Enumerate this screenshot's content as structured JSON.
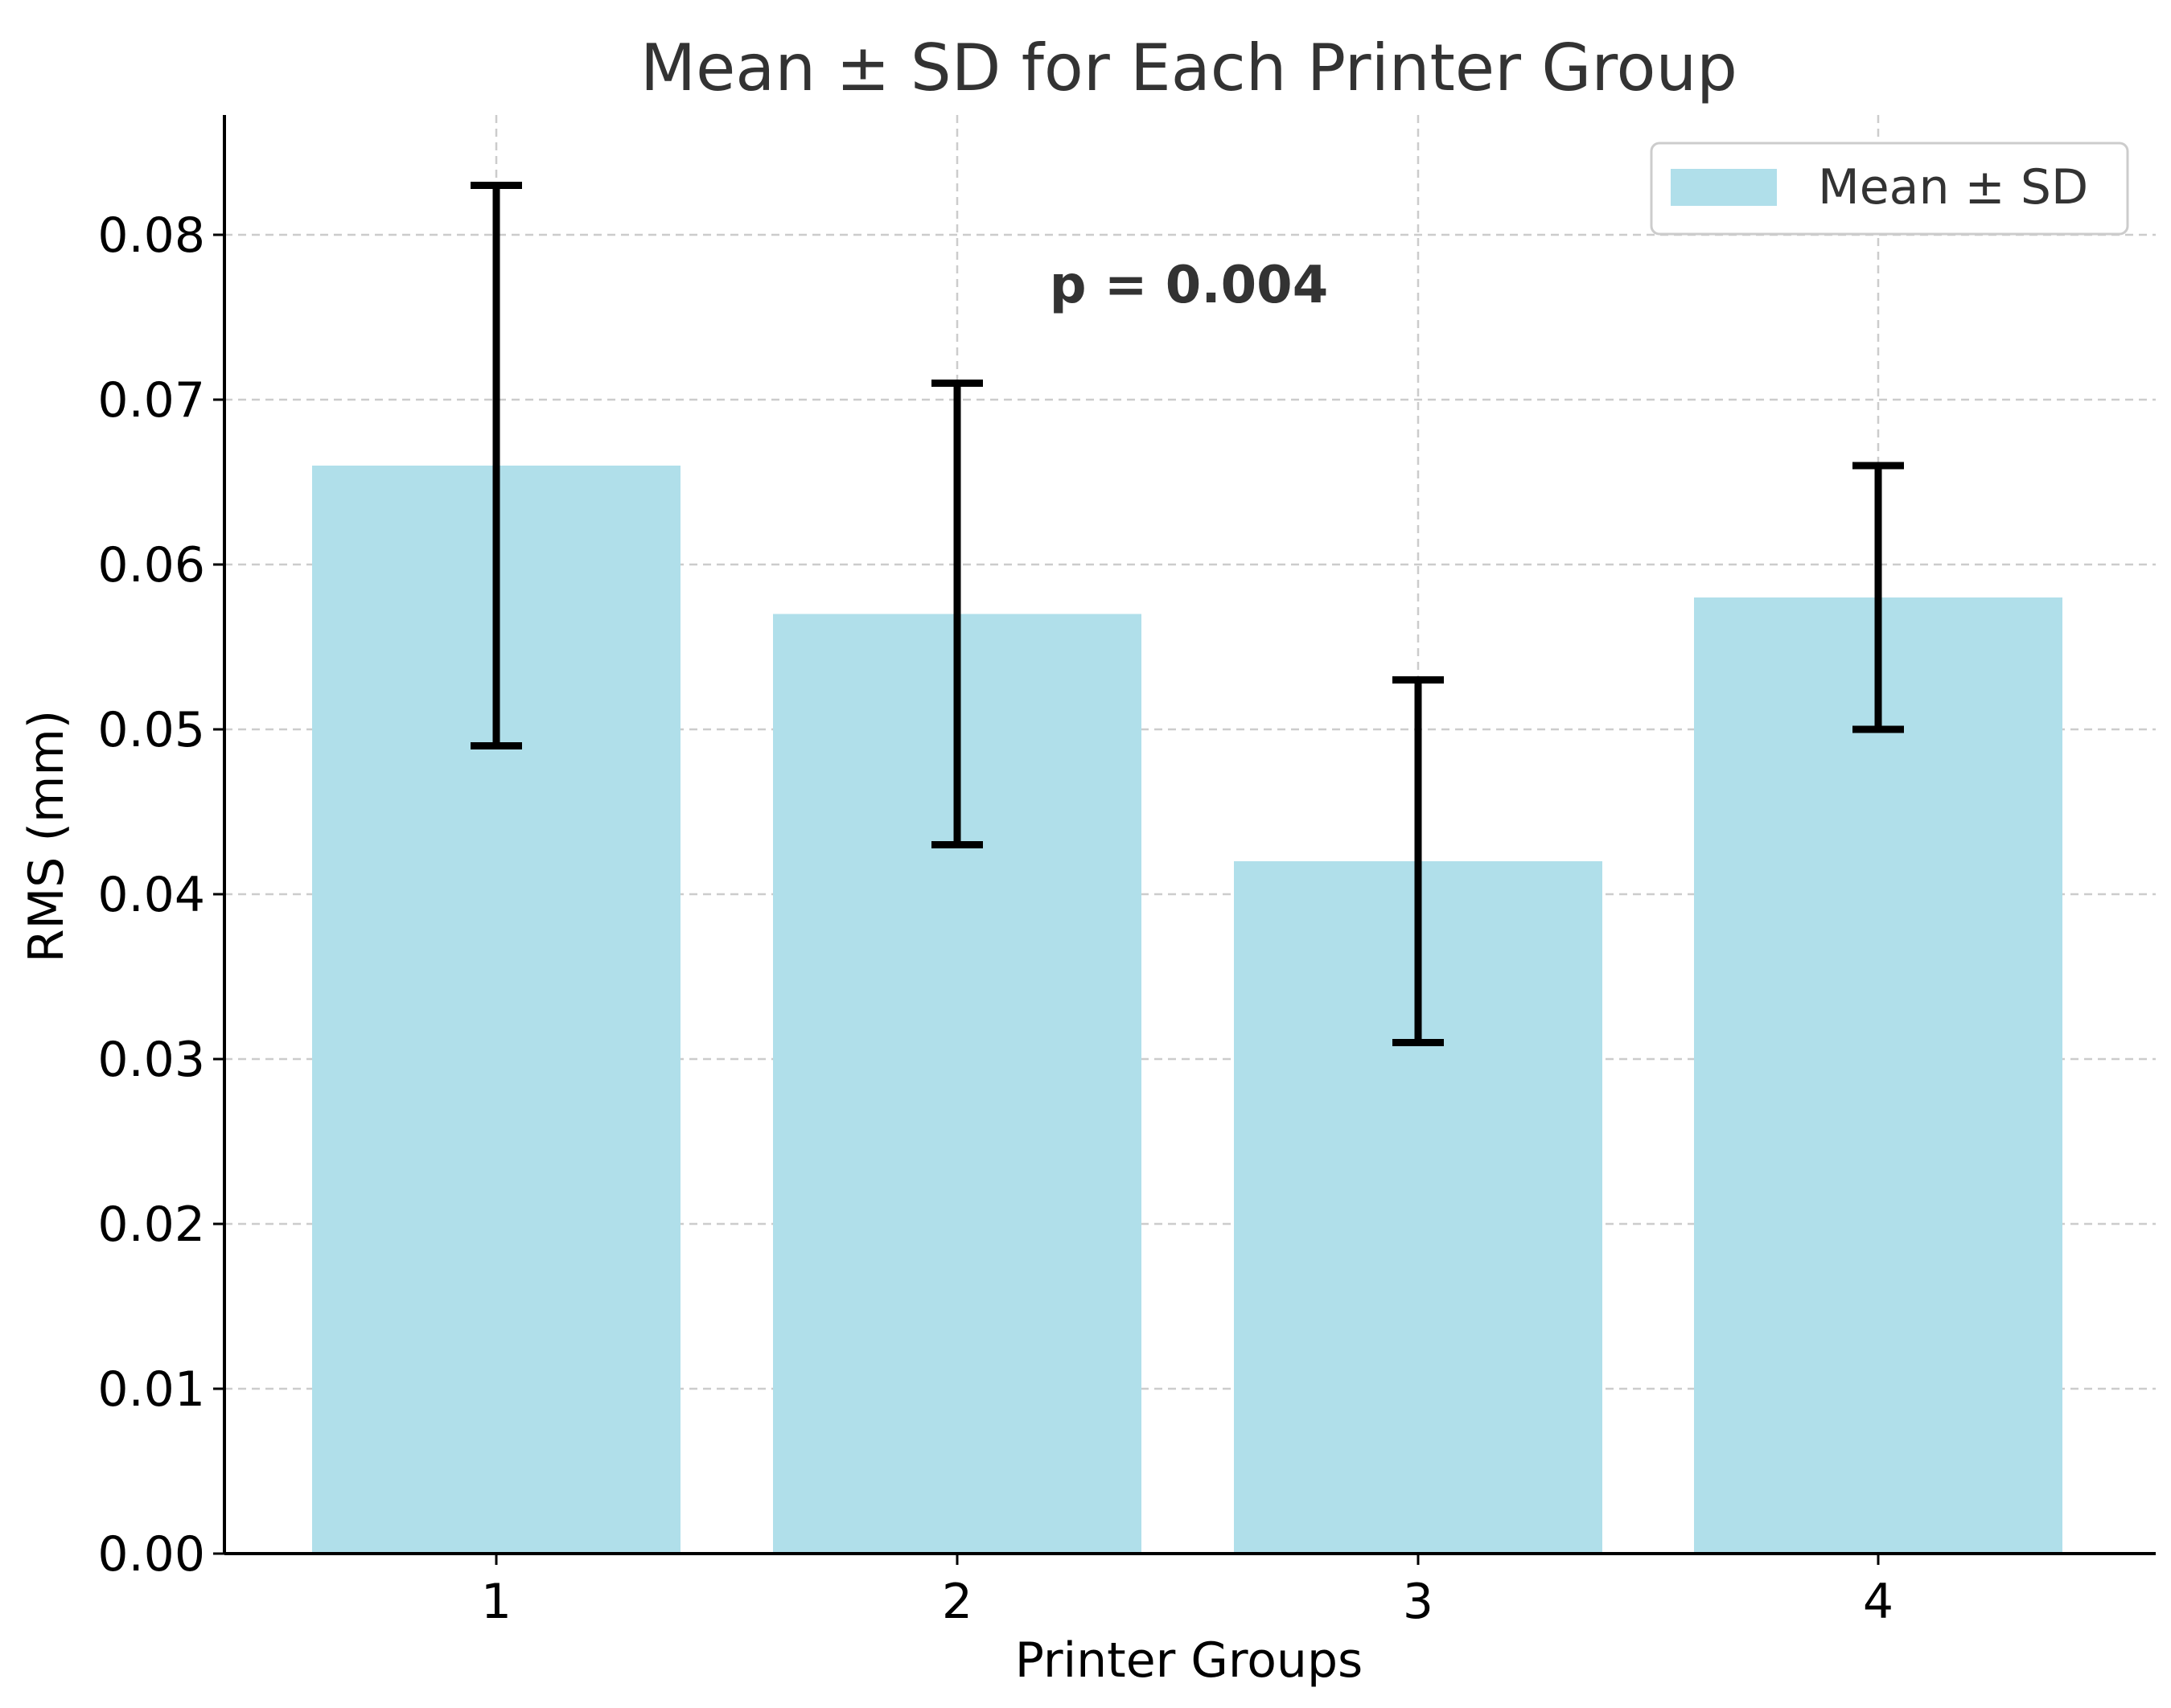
{
  "chart_data": {
    "type": "bar",
    "title": "Mean ± SD for Each Printer Group",
    "xlabel": "Printer Groups",
    "ylabel": "RMS (mm)",
    "categories": [
      "1",
      "2",
      "3",
      "4"
    ],
    "series": [
      {
        "name": "Mean ± SD",
        "values": [
          0.066,
          0.057,
          0.042,
          0.058
        ],
        "sd": [
          0.017,
          0.014,
          0.011,
          0.008
        ]
      }
    ],
    "ylim": [
      0,
      0.087
    ],
    "yticks": [
      "0.00",
      "0.01",
      "0.02",
      "0.03",
      "0.04",
      "0.05",
      "0.06",
      "0.07",
      "0.08"
    ],
    "annotation": "p = 0.004",
    "grid": true,
    "legend_position": "top-right",
    "bar_color": "#b0dfea",
    "errorbar_color": "#000000"
  }
}
